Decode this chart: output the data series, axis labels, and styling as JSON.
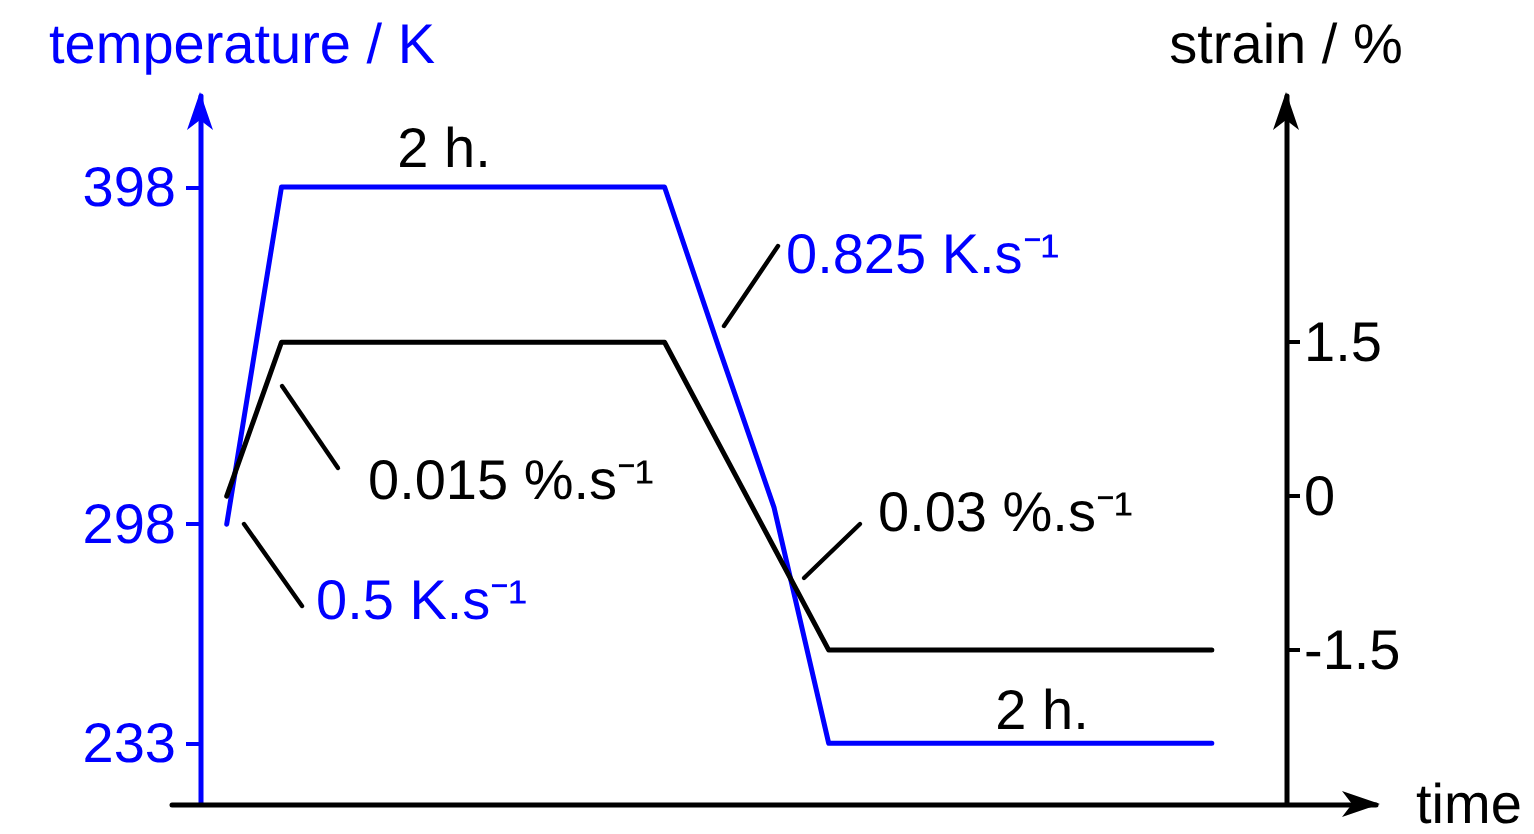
{
  "chart_data": {
    "type": "line",
    "xlabel": "time",
    "ylabel": "temperature / K",
    "y2label": "strain / %",
    "categories": [
      null,
      null,
      null,
      null,
      null,
      null,
      null,
      null,
      null,
      null,
      null,
      null,
      null,
      null,
      null,
      null,
      null,
      null,
      null,
      null,
      null,
      null,
      null
    ],
    "series": [
      {
        "color": "#0000ff",
        "values": [
          null,
          298,
          398,
          398,
          398,
          398,
          398,
          398,
          398,
          398,
          350,
          303,
          233,
          233,
          233,
          233,
          233,
          233,
          233,
          233,
          null,
          null,
          null
        ]
      },
      {
        "color": "#000000",
        "axis": "y2",
        "values": [
          null,
          0,
          1.5,
          1.5,
          1.5,
          1.5,
          1.5,
          1.5,
          1.5,
          1.5,
          0.5,
          -0.5,
          -1.5,
          -1.5,
          -1.5,
          -1.5,
          -1.5,
          -1.5,
          -1.5,
          -1.5,
          null,
          null,
          null
        ]
      }
    ],
    "ylim": [
      215,
      425
    ],
    "yticks": [
      233,
      298,
      398
    ],
    "y2lim": [
      -3,
      3.9
    ],
    "y2ticks": [
      -1.5,
      0,
      1.5
    ],
    "tick_labels": "y",
    "marker": "none",
    "grid": false,
    "annotations": [
      "2 h.",
      "0.825 K.s⁻¹",
      "0.015 %.s⁻¹",
      "0.03 %.s⁻¹",
      "0.5 K.s⁻¹",
      "2 h."
    ]
  }
}
